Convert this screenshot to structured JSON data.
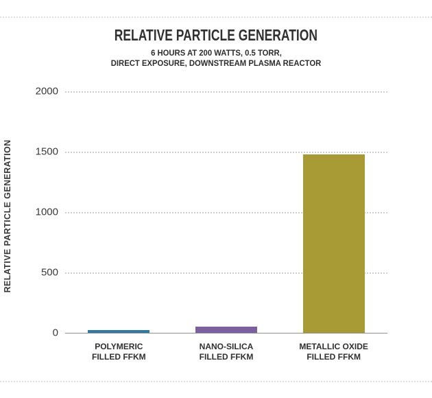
{
  "chart_data": {
    "type": "bar",
    "title": "RELATIVE PARTICLE GENERATION",
    "subtitle_lines": [
      "6 HOURS AT 200 WATTS, 0.5 TORR,",
      "DIRECT EXPOSURE, DOWNSTREAM PLASMA REACTOR"
    ],
    "ylabel": "RELATIVE PARTICLE GENERATION",
    "xlabel": "",
    "categories": [
      [
        "POLYMERIC",
        "FILLED FFKM"
      ],
      [
        "NANO-SILICA",
        "FILLED FFKM"
      ],
      [
        "METALLIC OXIDE",
        "FILLED FFKM"
      ]
    ],
    "values": [
      25,
      50,
      1480
    ],
    "bar_colors": [
      "#2e7aa4",
      "#7c5f9e",
      "#a89a34"
    ],
    "ylim": [
      0,
      2000
    ],
    "yticks": [
      0,
      500,
      1000,
      1500,
      2000
    ],
    "grid": "horizontal-dotted",
    "legend": "none",
    "axis_color": "#8f8f8f",
    "gridline_color": "#cfcfcd"
  }
}
